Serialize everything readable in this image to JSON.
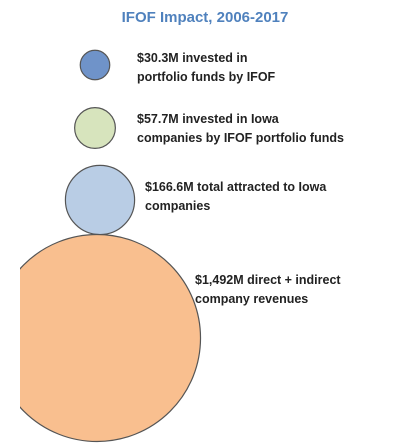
{
  "chart_data": {
    "type": "bubble",
    "title": "IFOF Impact, 2006-2017",
    "values": [
      30.3,
      57.7,
      166.6,
      1492
    ],
    "value_labels": [
      "$30.3M",
      "$57.7M",
      "$166.6M",
      "$1,492M"
    ],
    "categories": [
      [
        "invested in",
        "portfolio funds by IFOF"
      ],
      [
        "invested in Iowa",
        "companies by IFOF portfolio funds"
      ],
      [
        "total attracted to Iowa",
        "companies"
      ],
      [
        "direct + indirect",
        "company revenues"
      ]
    ],
    "colors": [
      "#6f93c9",
      "#d7e4bd",
      "#b9cde5",
      "#f9bf8f"
    ]
  }
}
